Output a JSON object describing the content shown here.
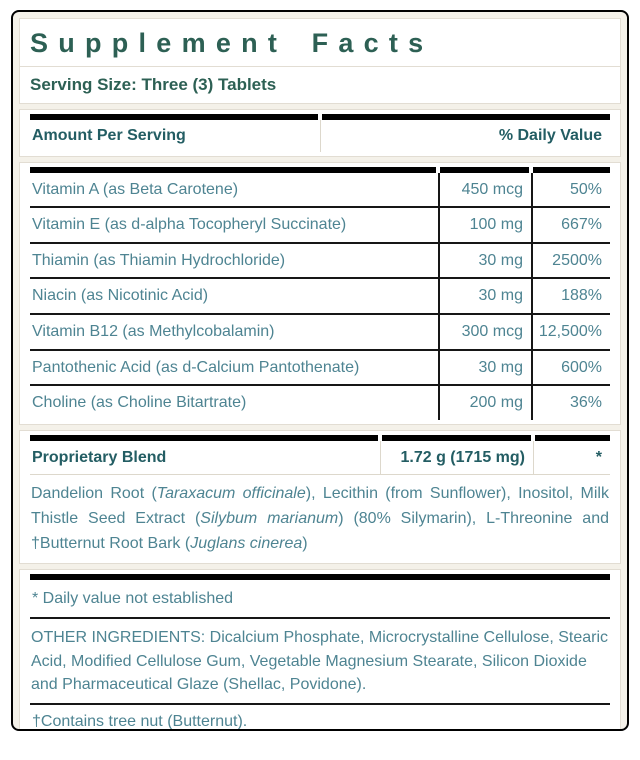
{
  "label": {
    "title": "Supplement Facts",
    "serving_size": "Serving Size: Three (3) Tablets",
    "header": {
      "amount_col": "Amount Per Serving",
      "dv_col": "% Daily Value"
    },
    "nutrients": [
      {
        "name": "Vitamin A (as Beta Carotene)",
        "amount": "450 mcg",
        "dv": "50%"
      },
      {
        "name": "Vitamin E (as d-alpha Tocopheryl Succinate)",
        "amount": "100 mg",
        "dv": "667%"
      },
      {
        "name": "Thiamin (as Thiamin Hydrochloride)",
        "amount": "30 mg",
        "dv": "2500%"
      },
      {
        "name": "Niacin (as Nicotinic Acid)",
        "amount": "30 mg",
        "dv": "188%"
      },
      {
        "name": "Vitamin B12 (as Methylcobalamin)",
        "amount": "300 mcg",
        "dv": "12,500%"
      },
      {
        "name": "Pantothenic Acid (as d-Calcium Pantothenate)",
        "amount": "30 mg",
        "dv": "600%"
      },
      {
        "name": "Choline (as Choline Bitartrate)",
        "amount": "200 mg",
        "dv": "36%"
      }
    ],
    "blend": {
      "name": "Proprietary Blend",
      "amount": "1.72 g (1715 mg)",
      "dv": "*",
      "desc": {
        "s1": "Dandelion Root (",
        "i1": "Taraxacum officinale",
        "s2": "), Lecithin (from Sunflower), Inositol, Milk Thistle Seed Extract (",
        "i2": "Silybum marianum",
        "s3": ") (80% Silymarin), L-Threonine and †Butternut Root Bark (",
        "i3": "Juglans cinerea",
        "s4": ")"
      }
    },
    "footnotes": {
      "daily_value_note": "* Daily value not established",
      "other_ingredients": "OTHER INGREDIENTS: Dicalcium Phosphate, Microcrystalline Cellulose, Stearic Acid, Modified Cellulose Gum, Vegetable Magnesium Stearate, Silicon Dioxide and Pharmaceutical Glaze (Shellac, Povidone).",
      "allergen": "†Contains tree nut (Butternut)."
    },
    "colors": {
      "title_teal": "#2d6054",
      "header_teal": "#235d63",
      "body_teal": "#4e8492",
      "rule_black": "#161616",
      "box_border": "#e2ddd3",
      "panel_background": "#f4f1e9"
    }
  }
}
